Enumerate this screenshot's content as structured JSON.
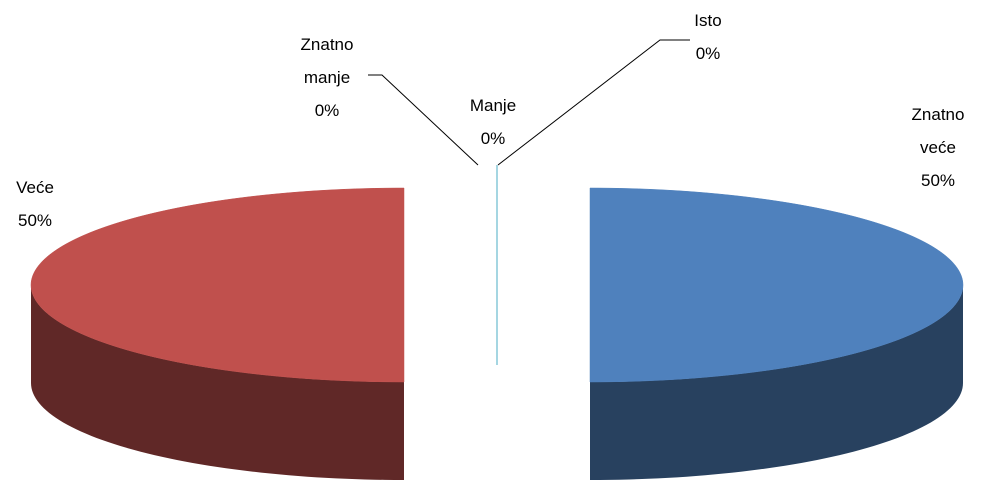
{
  "chart_data": {
    "type": "pie",
    "categories": [
      "Znatno veće",
      "Veće",
      "Manje",
      "Znatno manje",
      "Isto"
    ],
    "values": [
      50,
      50,
      0,
      0,
      0
    ],
    "value_labels": [
      "50%",
      "50%",
      "0%",
      "0%",
      "0%"
    ],
    "colors": [
      "#4f81bd",
      "#c0504d",
      "#9bbb59",
      "#8064a2",
      "#4bacc6"
    ],
    "three_d": true,
    "exploded": true
  }
}
